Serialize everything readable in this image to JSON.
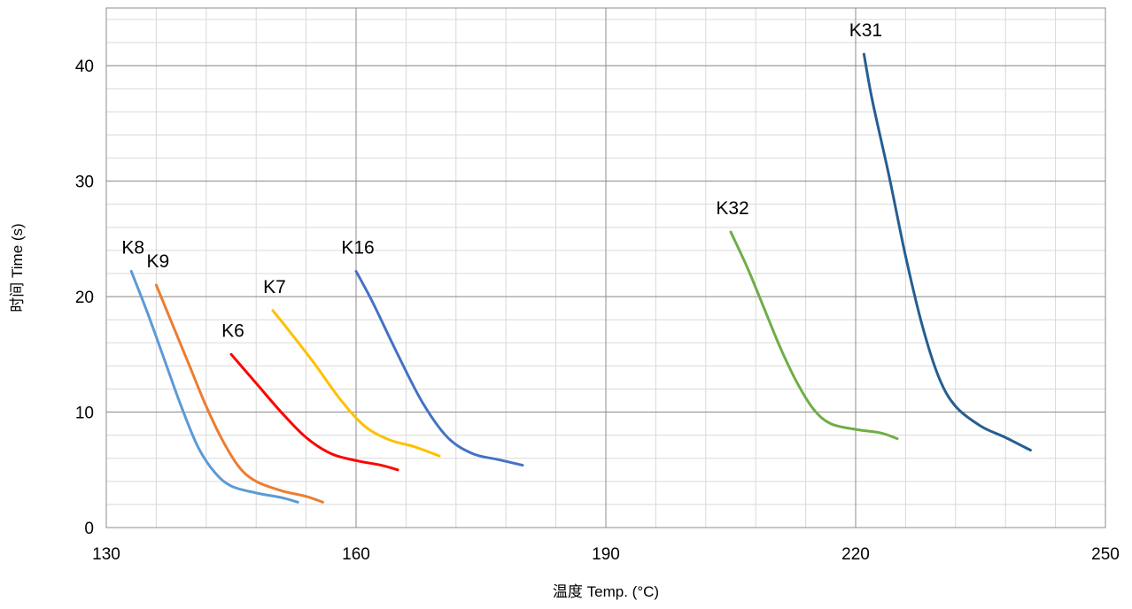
{
  "chart_data": {
    "type": "line",
    "title": "",
    "xlabel": "温度 Temp. (°C)",
    "ylabel": "时间 Time (s)",
    "xlim": [
      130,
      250
    ],
    "ylim": [
      0,
      45
    ],
    "x_ticks": [
      130,
      160,
      190,
      220,
      250
    ],
    "y_ticks": [
      0,
      10,
      20,
      30,
      40
    ],
    "x_minor_step": 6,
    "y_minor_step": 2,
    "grid": true,
    "legend": "none (series labelled directly on the plot)",
    "series": [
      {
        "name": "K8",
        "color": "#5B9BD5",
        "points": [
          [
            133,
            22.2
          ],
          [
            135,
            18.5
          ],
          [
            137,
            14.5
          ],
          [
            139,
            10.5
          ],
          [
            141,
            7
          ],
          [
            143,
            4.8
          ],
          [
            145,
            3.6
          ],
          [
            148,
            3.0
          ],
          [
            151,
            2.6
          ],
          [
            153,
            2.2
          ]
        ]
      },
      {
        "name": "K9",
        "color": "#ED7D31",
        "points": [
          [
            136,
            21.0
          ],
          [
            138,
            17.5
          ],
          [
            140,
            14
          ],
          [
            142,
            10.5
          ],
          [
            144,
            7.5
          ],
          [
            146,
            5.2
          ],
          [
            148,
            4.0
          ],
          [
            151,
            3.2
          ],
          [
            154,
            2.7
          ],
          [
            156,
            2.2
          ]
        ]
      },
      {
        "name": "K6",
        "color": "#FF0000",
        "points": [
          [
            145,
            15.0
          ],
          [
            148,
            12.5
          ],
          [
            151,
            10
          ],
          [
            154,
            7.8
          ],
          [
            157,
            6.4
          ],
          [
            160,
            5.8
          ],
          [
            163,
            5.4
          ],
          [
            165,
            5.0
          ]
        ]
      },
      {
        "name": "K7",
        "color": "#FFC000",
        "points": [
          [
            150,
            18.8
          ],
          [
            152,
            17.0
          ],
          [
            155,
            14.2
          ],
          [
            158,
            11.2
          ],
          [
            161,
            8.8
          ],
          [
            164,
            7.6
          ],
          [
            167,
            7.0
          ],
          [
            170,
            6.2
          ]
        ]
      },
      {
        "name": "K16",
        "color": "#4472C4",
        "points": [
          [
            160,
            22.2
          ],
          [
            162,
            19.5
          ],
          [
            165,
            15.0
          ],
          [
            168,
            10.8
          ],
          [
            171,
            7.8
          ],
          [
            174,
            6.4
          ],
          [
            177,
            5.9
          ],
          [
            180,
            5.4
          ]
        ]
      },
      {
        "name": "K32",
        "color": "#70AD47",
        "points": [
          [
            205,
            25.6
          ],
          [
            207,
            22.5
          ],
          [
            209,
            19
          ],
          [
            211,
            15.5
          ],
          [
            213,
            12.5
          ],
          [
            215,
            10.2
          ],
          [
            217,
            9.0
          ],
          [
            220,
            8.5
          ],
          [
            223,
            8.2
          ],
          [
            225,
            7.7
          ]
        ]
      },
      {
        "name": "K31",
        "color": "#255E91",
        "points": [
          [
            221,
            41.0
          ],
          [
            222,
            37.0
          ],
          [
            224,
            30.5
          ],
          [
            226,
            23.5
          ],
          [
            228,
            17.5
          ],
          [
            230,
            13.0
          ],
          [
            232,
            10.5
          ],
          [
            235,
            8.8
          ],
          [
            238,
            7.8
          ],
          [
            241,
            6.7
          ]
        ]
      }
    ]
  }
}
